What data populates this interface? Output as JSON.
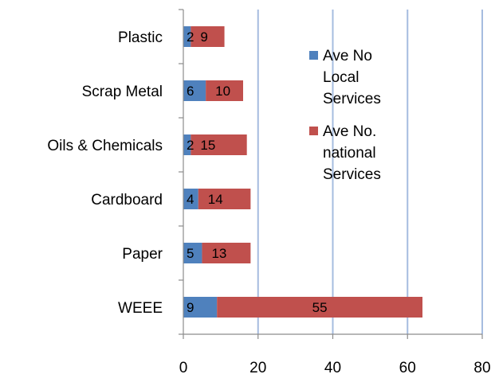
{
  "chart_data": {
    "type": "bar",
    "orientation": "horizontal",
    "stacked": true,
    "title": "",
    "xlabel": "",
    "ylabel": "",
    "categories": [
      "Plastic",
      "Scrap Metal",
      "Oils & Chemicals",
      "Cardboard",
      "Paper",
      "WEEE"
    ],
    "series": [
      {
        "name": "Ave No Local Services",
        "legend_lines": [
          "Ave No",
          "Local",
          "Services"
        ],
        "color": "#4f81bd",
        "values": [
          2,
          6,
          2,
          4,
          5,
          9
        ]
      },
      {
        "name": "Ave No. national Services",
        "legend_lines": [
          "Ave No.",
          "national",
          "Services"
        ],
        "color": "#c0504d",
        "values": [
          9,
          10,
          15,
          14,
          13,
          55
        ]
      }
    ],
    "xlim": [
      0,
      80
    ],
    "xticks": [
      0,
      20,
      40,
      60,
      80
    ],
    "xtick_labels": [
      "0",
      "20",
      "40",
      "60",
      "80"
    ],
    "gridlines": "vertical",
    "grid_color": "#a6bcdf",
    "legend_position": "right-inside"
  }
}
